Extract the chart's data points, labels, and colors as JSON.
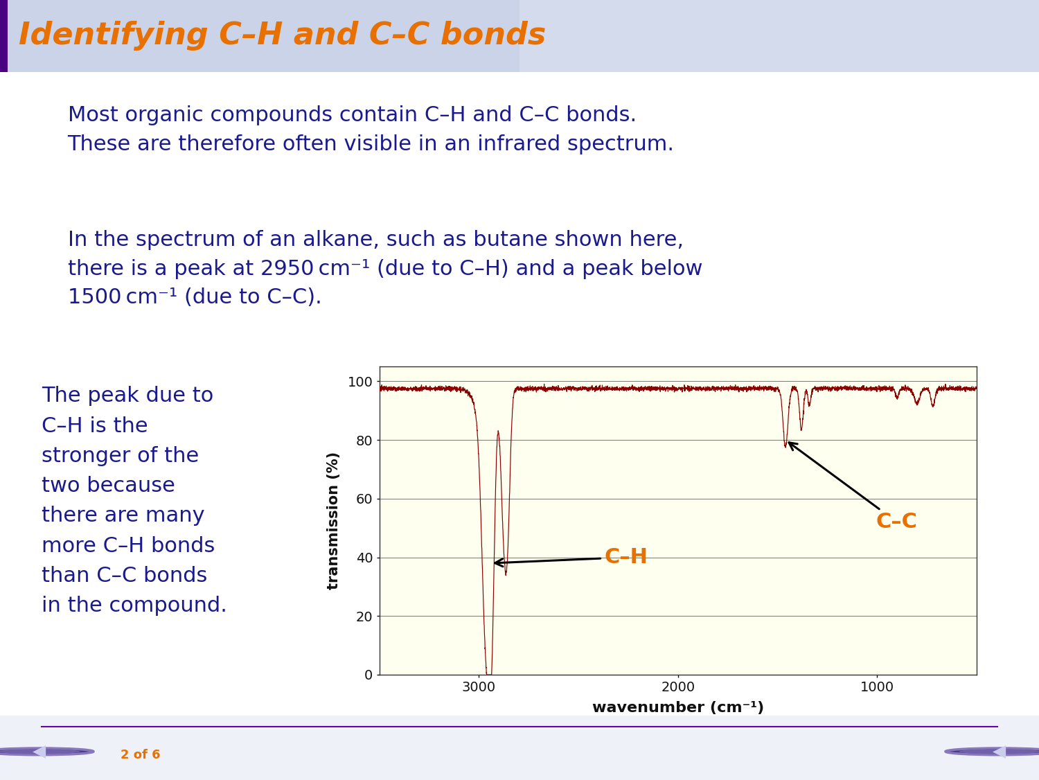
{
  "title": "Identifying C–H and C–C bonds",
  "title_color": "#E87000",
  "bg_color": "#EEF2F8",
  "header_bg_left": "#C8D0E8",
  "header_bg_right": "#E8ECF8",
  "accent_bar_color": "#4B0082",
  "text_color": "#1A1A8C",
  "white": "#FFFFFF",
  "paragraph1": "Most organic compounds contain C–H and C–C bonds.\nThese are therefore often visible in an infrared spectrum.",
  "paragraph2": "In the spectrum of an alkane, such as butane shown here,\nthere is a peak at 2950 cm⁻¹ (due to C–H) and a peak below\n1500 cm⁻¹ (due to C–C).",
  "paragraph3": "The peak due to\nC–H is the\nstronger of the\ntwo because\nthere are many\nmore C–H bonds\nthan C–C bonds\nin the compound.",
  "chart_bg": "#FFFFF0",
  "xlabel": "wavenumber (cm⁻¹)",
  "ylabel": "transmission (%)",
  "xticks": [
    3000,
    2000,
    1000
  ],
  "yticks": [
    0,
    20,
    40,
    60,
    80,
    100
  ],
  "line_color": "#8B0000",
  "annotation_CH": "C–H",
  "annotation_CC": "C–C",
  "annotation_color": "#E87000",
  "footer_text": "2 of 6",
  "footer_color": "#E87000",
  "nav_color": "#4B3A8C",
  "nav_arrow_color": "#5A4A9C",
  "footer_line_color": "#6600AA"
}
